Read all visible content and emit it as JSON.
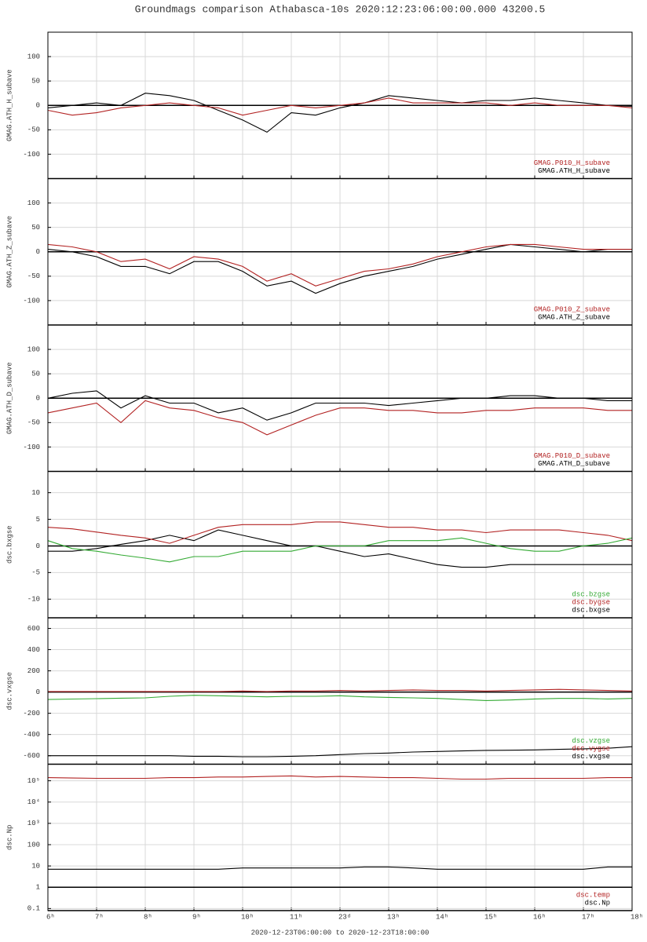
{
  "chart_data": [
    {
      "type": "line",
      "title": "Groundmags comparison Athabasca-10s 2020:12:23:06:00:00.000 43200.5",
      "ylabel": "GMAG.ATH_H_subave",
      "x": [
        6,
        6.5,
        7,
        7.5,
        8,
        8.5,
        9,
        9.5,
        10,
        10.5,
        11,
        11.5,
        12,
        12.5,
        13,
        13.5,
        14,
        14.5,
        15,
        15.5,
        16,
        16.5,
        17,
        17.5,
        18
      ],
      "xlim": [
        6,
        18
      ],
      "xticks": [
        6,
        7,
        8,
        9,
        10,
        11,
        12,
        13,
        14,
        15,
        16,
        17,
        18
      ],
      "ylim": [
        -150,
        150
      ],
      "yticks": [
        -100,
        -50,
        0,
        50,
        100
      ],
      "grid": true,
      "legend": "lower right",
      "series": [
        {
          "name": "GMAG.P010_H_subave",
          "color": "#b22222",
          "values": [
            -10,
            -20,
            -15,
            -5,
            0,
            5,
            0,
            -5,
            -20,
            -10,
            0,
            -5,
            0,
            5,
            15,
            5,
            5,
            5,
            5,
            0,
            5,
            0,
            0,
            0,
            -5
          ]
        },
        {
          "name": "GMAG.ATH_H_subave",
          "color": "#000000",
          "values": [
            -5,
            0,
            5,
            0,
            25,
            20,
            10,
            -10,
            -30,
            -55,
            -15,
            -20,
            -5,
            5,
            20,
            15,
            10,
            5,
            10,
            10,
            15,
            10,
            5,
            0,
            -2
          ]
        }
      ]
    },
    {
      "type": "line",
      "ylabel": "GMAG.ATH_Z_subave",
      "x": [
        6,
        6.5,
        7,
        7.5,
        8,
        8.5,
        9,
        9.5,
        10,
        10.5,
        11,
        11.5,
        12,
        12.5,
        13,
        13.5,
        14,
        14.5,
        15,
        15.5,
        16,
        16.5,
        17,
        17.5,
        18
      ],
      "xlim": [
        6,
        18
      ],
      "xticks": [
        6,
        7,
        8,
        9,
        10,
        11,
        12,
        13,
        14,
        15,
        16,
        17,
        18
      ],
      "ylim": [
        -150,
        150
      ],
      "yticks": [
        -100,
        -50,
        0,
        50,
        100
      ],
      "grid": true,
      "legend": "lower right",
      "series": [
        {
          "name": "GMAG.P010_Z_subave",
          "color": "#b22222",
          "values": [
            15,
            10,
            0,
            -20,
            -15,
            -35,
            -10,
            -15,
            -30,
            -60,
            -45,
            -70,
            -55,
            -40,
            -35,
            -25,
            -10,
            0,
            10,
            15,
            15,
            10,
            5,
            5,
            5
          ]
        },
        {
          "name": "GMAG.ATH_Z_subave",
          "color": "#000000",
          "values": [
            5,
            0,
            -10,
            -30,
            -30,
            -45,
            -20,
            -20,
            -40,
            -70,
            -60,
            -85,
            -65,
            -50,
            -40,
            -30,
            -15,
            -5,
            5,
            15,
            10,
            5,
            0,
            5,
            5
          ]
        }
      ]
    },
    {
      "type": "line",
      "ylabel": "GMAG.ATH_D_subave",
      "x": [
        6,
        6.5,
        7,
        7.5,
        8,
        8.5,
        9,
        9.5,
        10,
        10.5,
        11,
        11.5,
        12,
        12.5,
        13,
        13.5,
        14,
        14.5,
        15,
        15.5,
        16,
        16.5,
        17,
        17.5,
        18
      ],
      "xlim": [
        6,
        18
      ],
      "xticks": [
        6,
        7,
        8,
        9,
        10,
        11,
        12,
        13,
        14,
        15,
        16,
        17,
        18
      ],
      "ylim": [
        -150,
        150
      ],
      "yticks": [
        -100,
        -50,
        0,
        50,
        100
      ],
      "grid": true,
      "legend": "lower right",
      "series": [
        {
          "name": "GMAG.P010_D_subave",
          "color": "#b22222",
          "values": [
            -30,
            -20,
            -10,
            -50,
            -5,
            -20,
            -25,
            -40,
            -50,
            -75,
            -55,
            -35,
            -20,
            -20,
            -25,
            -25,
            -30,
            -30,
            -25,
            -25,
            -20,
            -20,
            -20,
            -25,
            -25
          ]
        },
        {
          "name": "GMAG.ATH_D_subave",
          "color": "#000000",
          "values": [
            0,
            10,
            15,
            -20,
            5,
            -10,
            -10,
            -30,
            -20,
            -45,
            -30,
            -10,
            -10,
            -10,
            -15,
            -10,
            -5,
            0,
            0,
            5,
            5,
            0,
            0,
            -5,
            -5
          ]
        }
      ]
    },
    {
      "type": "line",
      "ylabel": "dsc.bxgse",
      "x": [
        6,
        6.5,
        7,
        7.5,
        8,
        8.5,
        9,
        9.5,
        10,
        10.5,
        11,
        11.5,
        12,
        12.5,
        13,
        13.5,
        14,
        14.5,
        15,
        15.5,
        16,
        16.5,
        17,
        17.5,
        18
      ],
      "xlim": [
        6,
        18
      ],
      "xticks": [
        6,
        7,
        8,
        9,
        10,
        11,
        12,
        13,
        14,
        15,
        16,
        17,
        18
      ],
      "ylim": [
        -13.5,
        14
      ],
      "yticks": [
        -10,
        -5,
        0,
        5,
        10
      ],
      "grid": true,
      "legend": "lower right",
      "series": [
        {
          "name": "dsc.bzgse",
          "color": "#33aa33",
          "values": [
            1,
            -0.5,
            -1,
            -1.7,
            -2.3,
            -3,
            -2,
            -2,
            -1,
            -1,
            -1,
            0,
            0,
            0,
            1,
            1,
            1,
            1.5,
            0.5,
            -0.5,
            -1,
            -1,
            0,
            0.5,
            1.5
          ]
        },
        {
          "name": "dsc.bygse",
          "color": "#b22222",
          "values": [
            3.5,
            3.2,
            2.6,
            2,
            1.5,
            0.5,
            2,
            3.5,
            4,
            4,
            4,
            4.5,
            4.5,
            4,
            3.5,
            3.5,
            3,
            3,
            2.5,
            3,
            3,
            3,
            2.5,
            2,
            1
          ]
        },
        {
          "name": "dsc.bxgse",
          "color": "#000000",
          "values": [
            -1,
            -1,
            -0.5,
            0.3,
            1,
            2,
            1,
            3,
            2,
            1,
            0,
            0,
            -1,
            -2,
            -1.5,
            -2.5,
            -3.5,
            -4,
            -4,
            -3.5,
            -3.5,
            -3.5,
            -3.5,
            -3.5,
            -3.5
          ]
        }
      ]
    },
    {
      "type": "line",
      "ylabel": "dsc.vxgse",
      "x": [
        6,
        6.5,
        7,
        7.5,
        8,
        8.5,
        9,
        9.5,
        10,
        10.5,
        11,
        11.5,
        12,
        12.5,
        13,
        13.5,
        14,
        14.5,
        15,
        15.5,
        16,
        16.5,
        17,
        17.5,
        18
      ],
      "xlim": [
        6,
        18
      ],
      "xticks": [
        6,
        7,
        8,
        9,
        10,
        11,
        12,
        13,
        14,
        15,
        16,
        17,
        18
      ],
      "ylim": [
        -680,
        700
      ],
      "yticks": [
        -600,
        -400,
        -200,
        0,
        200,
        400,
        600
      ],
      "grid": true,
      "legend": "lower right",
      "series": [
        {
          "name": "dsc.vzgse",
          "color": "#33aa33",
          "values": [
            -70,
            -66,
            -62,
            -58,
            -55,
            -40,
            -30,
            -35,
            -40,
            -45,
            -40,
            -40,
            -35,
            -45,
            -50,
            -55,
            -60,
            -70,
            -80,
            -75,
            -65,
            -60,
            -60,
            -65,
            -60
          ]
        },
        {
          "name": "dsc.vygse",
          "color": "#b22222",
          "values": [
            5,
            5,
            5,
            5,
            5,
            5,
            5,
            5,
            10,
            5,
            10,
            10,
            15,
            10,
            15,
            20,
            15,
            15,
            10,
            15,
            20,
            25,
            20,
            15,
            10
          ]
        },
        {
          "name": "dsc.vxgse",
          "color": "#000000",
          "values": [
            -600,
            -600,
            -600,
            -600,
            -600,
            -600,
            -605,
            -605,
            -610,
            -610,
            -605,
            -600,
            -590,
            -580,
            -575,
            -565,
            -560,
            -555,
            -550,
            -548,
            -545,
            -540,
            -535,
            -530,
            -515
          ]
        }
      ]
    },
    {
      "type": "line",
      "ylabel": "dsc.Np",
      "xlabel": "2020-12-23T06:00:00 to 2020-12-23T18:00:00",
      "yscale": "log",
      "x": [
        6,
        6.5,
        7,
        7.5,
        8,
        8.5,
        9,
        9.5,
        10,
        10.5,
        11,
        11.5,
        12,
        12.5,
        13,
        13.5,
        14,
        14.5,
        15,
        15.5,
        16,
        16.5,
        17,
        17.5,
        18
      ],
      "xlim": [
        6,
        18
      ],
      "xticks": [
        {
          "value": 6,
          "label": "6ʰ"
        },
        {
          "value": 7,
          "label": "7ʰ"
        },
        {
          "value": 8,
          "label": "8ʰ"
        },
        {
          "value": 9,
          "label": "9ʰ"
        },
        {
          "value": 10,
          "label": "10ʰ"
        },
        {
          "value": 11,
          "label": "11ʰ"
        },
        {
          "value": 12,
          "label": "23ᵈ"
        },
        {
          "value": 13,
          "label": "13ʰ"
        },
        {
          "value": 14,
          "label": "14ʰ"
        },
        {
          "value": 15,
          "label": "15ʰ"
        },
        {
          "value": 16,
          "label": "16ʰ"
        },
        {
          "value": 17,
          "label": "17ʰ"
        },
        {
          "value": 18,
          "label": "18ʰ"
        }
      ],
      "ylim": [
        0.08,
        600000
      ],
      "yticks": [
        0.1,
        1,
        10,
        100,
        {
          "value": 1000,
          "label": "10³"
        },
        {
          "value": 10000,
          "label": "10⁴"
        },
        {
          "value": 100000,
          "label": "10⁵"
        }
      ],
      "grid": true,
      "legend": "lower right",
      "series": [
        {
          "name": "dsc.temp",
          "color": "#b22222",
          "values": [
            140000,
            135000,
            130000,
            130000,
            130000,
            140000,
            140000,
            150000,
            150000,
            160000,
            170000,
            150000,
            160000,
            150000,
            140000,
            140000,
            130000,
            120000,
            120000,
            130000,
            130000,
            130000,
            130000,
            140000,
            140000
          ]
        },
        {
          "name": "dsc.Np",
          "color": "#000000",
          "values": [
            7,
            7,
            7,
            7,
            7,
            7,
            7,
            7,
            8,
            8,
            8,
            8,
            8,
            9,
            9,
            8,
            7,
            7,
            7,
            7,
            7,
            7,
            7,
            9,
            9
          ]
        }
      ]
    }
  ]
}
